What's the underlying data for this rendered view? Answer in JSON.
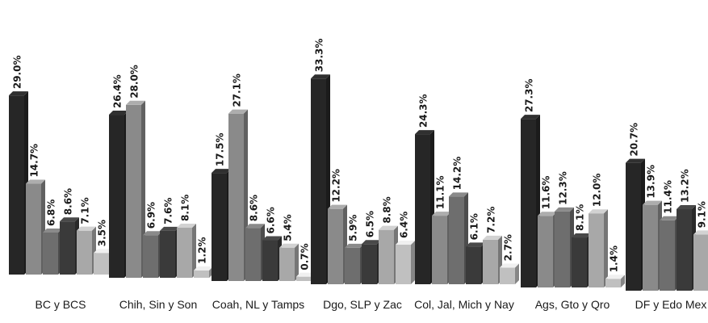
{
  "chart_data": {
    "type": "bar",
    "title": "",
    "xlabel": "",
    "ylabel": "",
    "ylim": [
      0,
      35
    ],
    "grid": false,
    "legend": "none",
    "categories": [
      "BC y BCS",
      "Chih, Sin y Son",
      "Coah, NL y Tamps",
      "Dgo, SLP y Zac",
      "Col, Jal, Mich y Nay",
      "Ags, Gto y Qro",
      "DF y Edo Mex"
    ],
    "series": [
      {
        "color": "#262626",
        "values": [
          29.0,
          26.4,
          17.5,
          33.3,
          24.3,
          27.3,
          20.7
        ]
      },
      {
        "color": "#8a8a8a",
        "values": [
          14.7,
          28.0,
          27.1,
          12.2,
          11.1,
          11.6,
          13.9
        ]
      },
      {
        "color": "#6e6e6e",
        "values": [
          6.8,
          6.9,
          8.6,
          5.9,
          14.2,
          12.3,
          11.4
        ]
      },
      {
        "color": "#3a3a3a",
        "values": [
          8.6,
          7.6,
          6.6,
          6.5,
          6.1,
          8.1,
          13.2
        ]
      },
      {
        "color": "#a8a8a8",
        "values": [
          7.1,
          8.1,
          5.4,
          8.8,
          7.2,
          12.0,
          9.1
        ]
      },
      {
        "color": "#c0c0c0",
        "values": [
          3.5,
          1.2,
          0.7,
          6.4,
          2.7,
          1.4,
          3.6
        ]
      }
    ],
    "value_labels": [
      [
        "29.0%",
        "14.7%",
        "6.8%",
        "8.6%",
        "7.1%",
        "3.5%"
      ],
      [
        "26.4%",
        "28.0%",
        "6.9%",
        "7.6%",
        "8.1%",
        "1.2%"
      ],
      [
        "17.5%",
        "27.1%",
        "8.6%",
        "6.6%",
        "5.4%",
        "0.7%"
      ],
      [
        "33.3%",
        "12.2%",
        "5.9%",
        "6.5%",
        "8.8%",
        "6.4%"
      ],
      [
        "24.3%",
        "11.1%",
        "14.2%",
        "6.1%",
        "7.2%",
        "2.7%"
      ],
      [
        "27.3%",
        "11.6%",
        "12.3%",
        "8.1%",
        "12.0%",
        "1.4%"
      ],
      [
        "20.7%",
        "13.9%",
        "11.4%",
        "13.2%",
        "9.1%",
        "3.6%"
      ]
    ]
  }
}
